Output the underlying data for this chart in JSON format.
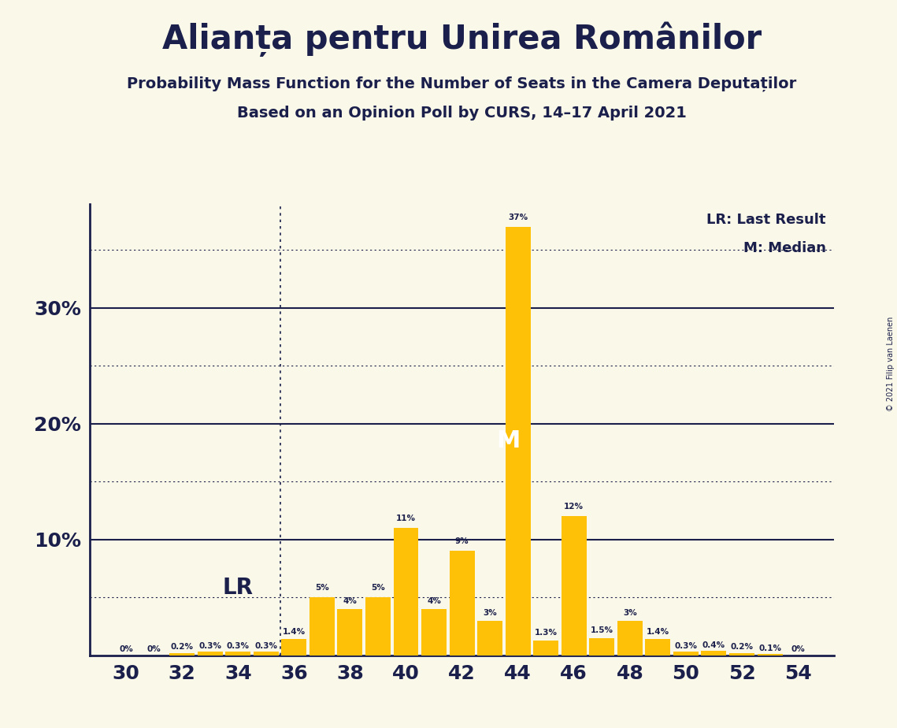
{
  "title": "Alianța pentru Unirea Românilor",
  "subtitle1": "Probability Mass Function for the Number of Seats in the Camera Deputaților",
  "subtitle2": "Based on an Opinion Poll by CURS, 14–17 April 2021",
  "copyright": "© 2021 Filip van Laenen",
  "seats": [
    30,
    31,
    32,
    33,
    34,
    35,
    36,
    37,
    38,
    39,
    40,
    41,
    42,
    43,
    44,
    45,
    46,
    47,
    48,
    49,
    50,
    51,
    52,
    53,
    54
  ],
  "probs": [
    0.0,
    0.0,
    0.2,
    0.3,
    0.3,
    0.3,
    1.4,
    5.0,
    4.0,
    5.0,
    11.0,
    4.0,
    9.0,
    3.0,
    37.0,
    1.3,
    12.0,
    1.5,
    3.0,
    1.4,
    0.3,
    0.4,
    0.2,
    0.1,
    0.0
  ],
  "labels": [
    "0%",
    "0%",
    "0.2%",
    "0.3%",
    "0.3%",
    "0.3%",
    "1.4%",
    "5%",
    "4%",
    "5%",
    "11%",
    "4%",
    "9%",
    "3%",
    "37%",
    "1.3%",
    "12%",
    "1.5%",
    "3%",
    "1.4%",
    "0.3%",
    "0.4%",
    "0.2%",
    "0.1%",
    "0%"
  ],
  "bar_color": "#FFC107",
  "bg_color": "#FAF8E8",
  "text_color": "#1a1f4b",
  "median_seat": 44,
  "lr_seat": 35,
  "lr_label": "LR",
  "median_label": "M",
  "legend_lr": "LR: Last Result",
  "legend_m": "M: Median",
  "solid_lines": [
    10,
    20,
    30
  ],
  "solid_ytick_labels": [
    "10%",
    "20%",
    "30%"
  ],
  "dotted_lines": [
    5,
    15,
    25,
    35
  ],
  "ylim": [
    0,
    39
  ],
  "xlabel_ticks": [
    30,
    32,
    34,
    36,
    38,
    40,
    42,
    44,
    46,
    48,
    50,
    52,
    54
  ]
}
